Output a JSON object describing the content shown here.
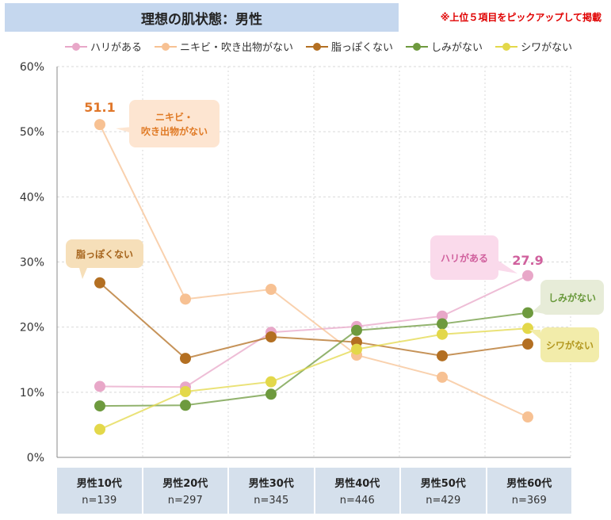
{
  "title": "理想の肌状態：男性",
  "note": "※上位５項目をピックアップして掲載",
  "colors": {
    "pink": "#e8a7c8",
    "peach": "#f7c193",
    "brown": "#b36f22",
    "green": "#6e9a3e",
    "yellow": "#e3d84a",
    "grid": "#d9d9d9",
    "axis_text": "#333333"
  },
  "chart_data": {
    "type": "line",
    "categories": [
      "男性10代",
      "男性20代",
      "男性30代",
      "男性40代",
      "男性50代",
      "男性60代"
    ],
    "sample_sizes": [
      "n=139",
      "n=297",
      "n=345",
      "n=446",
      "n=429",
      "n=369"
    ],
    "ylim": [
      0,
      60
    ],
    "yticks": [
      0,
      10,
      20,
      30,
      40,
      50,
      60
    ],
    "ytick_labels": [
      "0%",
      "10%",
      "20%",
      "30%",
      "40%",
      "50%",
      "60%"
    ],
    "grid": true,
    "legend_position": "top",
    "series": [
      {
        "name": "ハリがある",
        "color_key": "pink",
        "values": [
          10.9,
          10.8,
          19.2,
          20.1,
          21.7,
          27.9
        ]
      },
      {
        "name": "ニキビ・吹き出物がない",
        "color_key": "peach",
        "values": [
          51.1,
          24.3,
          25.8,
          15.7,
          12.3,
          6.2
        ]
      },
      {
        "name": "脂っぽくない",
        "color_key": "brown",
        "values": [
          26.8,
          15.2,
          18.5,
          17.7,
          15.6,
          17.4
        ]
      },
      {
        "name": "しみがない",
        "color_key": "green",
        "values": [
          7.9,
          8.0,
          9.7,
          19.5,
          20.5,
          22.2
        ]
      },
      {
        "name": "シワがない",
        "color_key": "yellow",
        "values": [
          4.3,
          10.1,
          11.6,
          16.6,
          18.9,
          19.8
        ]
      }
    ],
    "value_labels": [
      {
        "text": "51.1",
        "series": 1,
        "index": 0
      },
      {
        "text": "27.9",
        "series": 0,
        "index": 5
      }
    ],
    "callouts": [
      {
        "text": "ニキビ・\n吹き出物がない",
        "series": 1
      },
      {
        "text": "脂っぽくない",
        "series": 2
      },
      {
        "text": "ハリがある",
        "series": 0
      },
      {
        "text": "しみがない",
        "series": 3
      },
      {
        "text": "シワがない",
        "series": 4
      }
    ]
  }
}
